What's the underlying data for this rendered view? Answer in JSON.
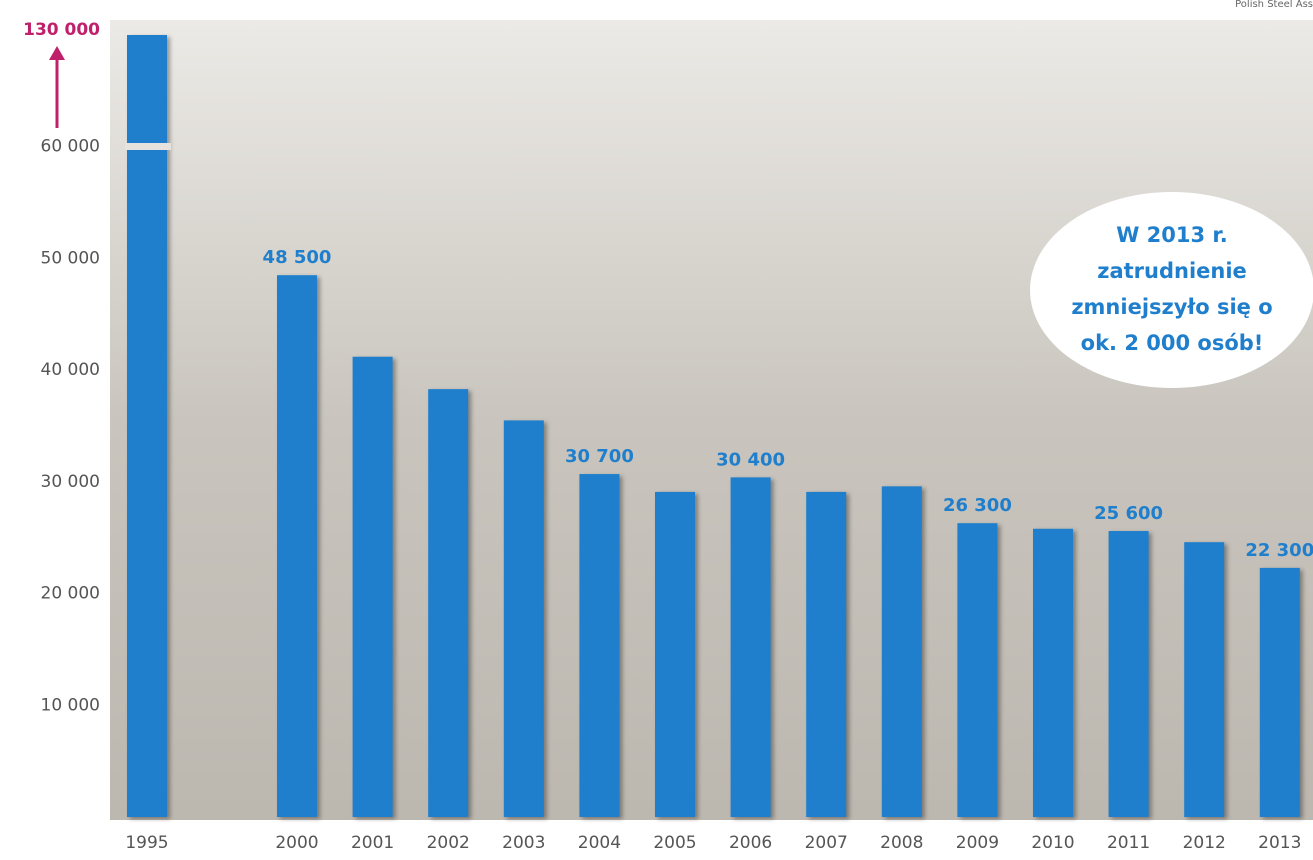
{
  "chart_data": {
    "type": "bar",
    "source": "Polish Steel Ass",
    "annotation": [
      "W 2013 r.",
      "zatrudnienie",
      "zmniejszyło się o",
      "ok. 2 000 osób!"
    ],
    "categories": [
      "1995",
      "2000",
      "2001",
      "2002",
      "2003",
      "2004",
      "2005",
      "2006",
      "2007",
      "2008",
      "2009",
      "2010",
      "2011",
      "2012",
      "2013"
    ],
    "values": [
      130000,
      48500,
      41200,
      38300,
      35500,
      30700,
      29100,
      30400,
      29100,
      29600,
      26300,
      25800,
      25600,
      24600,
      22300
    ],
    "value_labels": [
      null,
      "48 500",
      null,
      null,
      null,
      "30 700",
      null,
      "30 400",
      null,
      null,
      "26 300",
      null,
      "25 600",
      null,
      "22 300"
    ],
    "color": "#1f7fcc",
    "ylim": [
      0,
      70000
    ],
    "yticks": [
      {
        "value": 10000,
        "label": "10 000"
      },
      {
        "value": 20000,
        "label": "20 000"
      },
      {
        "value": 30000,
        "label": "30 000"
      },
      {
        "value": 40000,
        "label": "40 000"
      },
      {
        "value": 50000,
        "label": "50 000"
      },
      {
        "value": 60000,
        "label": "60 000"
      }
    ],
    "axis_break": {
      "value": 130000,
      "label": "130 000",
      "color": "#c0206a"
    }
  }
}
